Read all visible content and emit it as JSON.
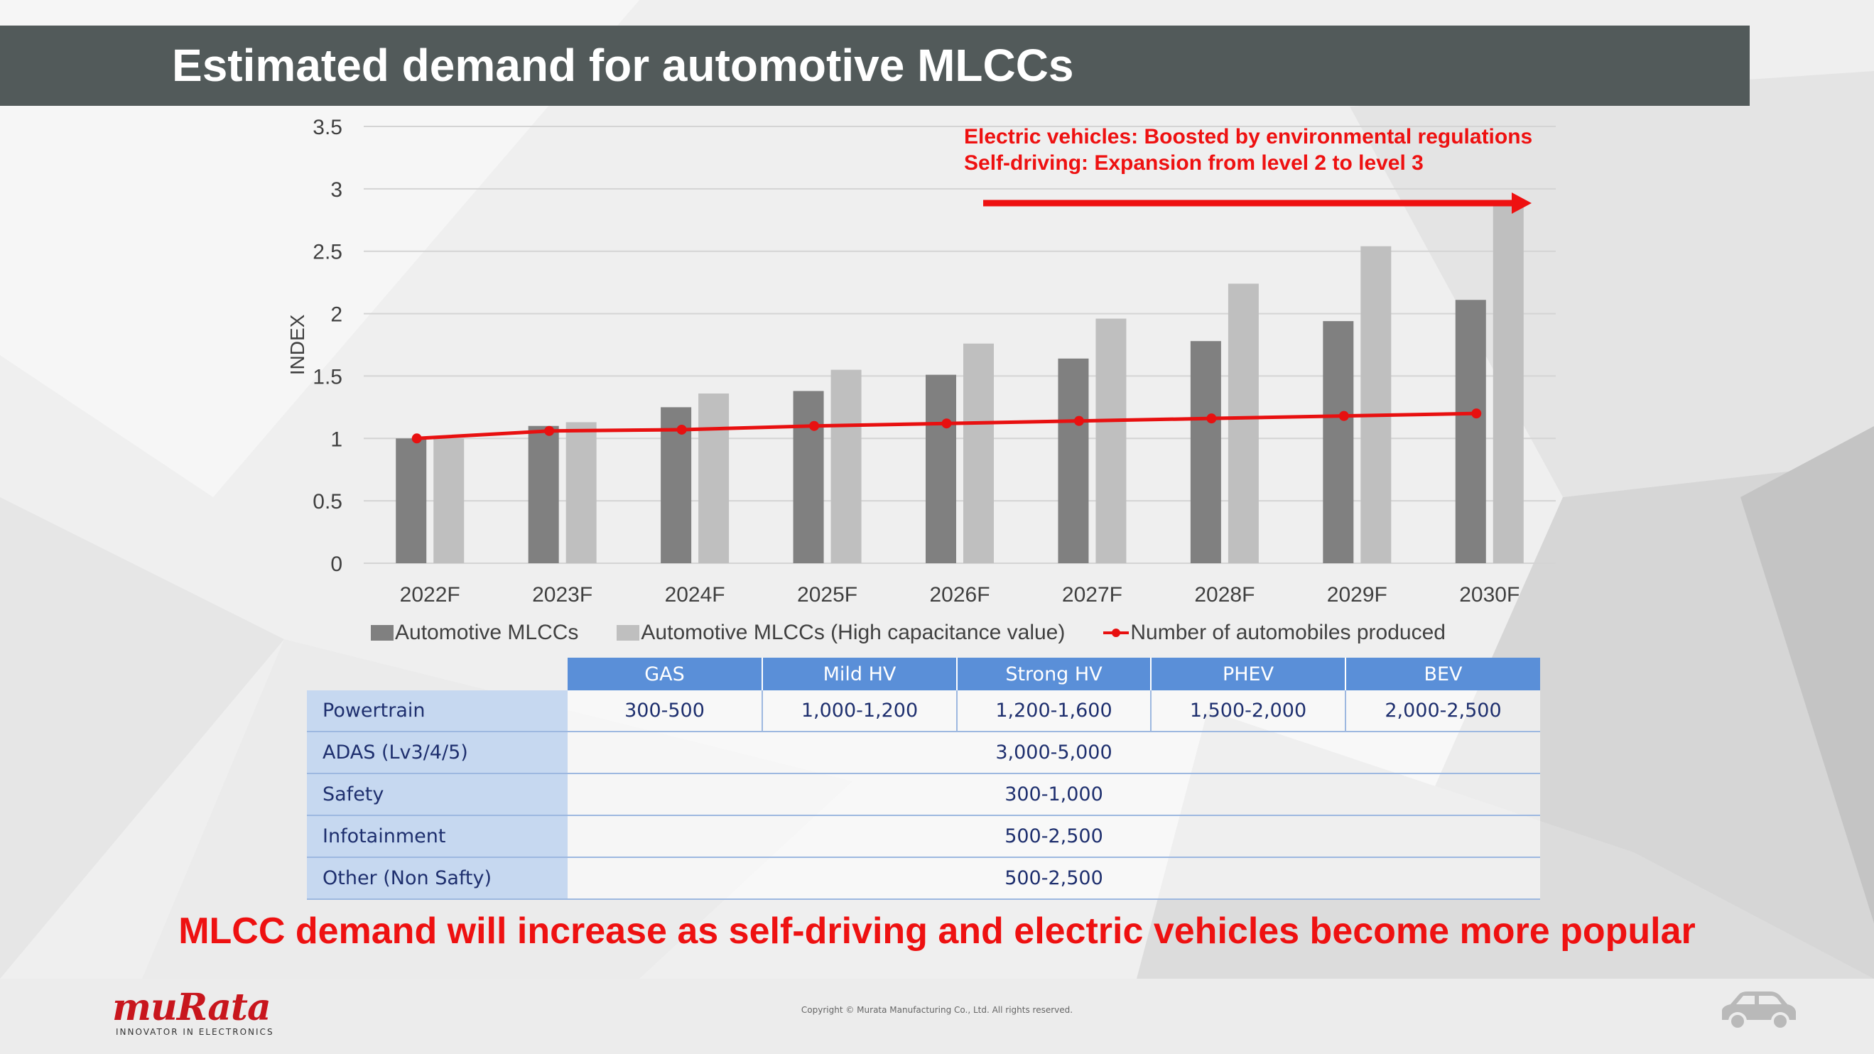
{
  "slide": {
    "title": "Estimated demand for automotive MLCCs",
    "conclusion": "MLCC demand will increase as self-driving and electric vehicles become more popular",
    "copyright": "Copyright © Murata Manufacturing Co., Ltd. All rights reserved."
  },
  "brand": {
    "logo_text": "muRata",
    "tagline": "INNOVATOR IN ELECTRONICS",
    "logo_color": "#c8161d"
  },
  "annotations": {
    "line1": "Electric vehicles: Boosted by environmental regulations",
    "line2": "Self-driving: Expansion from level 2 to level 3",
    "color": "#ee1111"
  },
  "chart_data": {
    "type": "bar",
    "title": "",
    "xlabel": "",
    "ylabel": "INDEX",
    "ylim": [
      0,
      3.5
    ],
    "yticks": [
      "0",
      "0.5",
      "1",
      "1.5",
      "2",
      "2.5",
      "3",
      "3.5"
    ],
    "grid": true,
    "legend_position": "bottom",
    "categories": [
      "2022F",
      "2023F",
      "2024F",
      "2025F",
      "2026F",
      "2027F",
      "2028F",
      "2029F",
      "2030F"
    ],
    "series": [
      {
        "name": "Automotive MLCCs",
        "kind": "bar",
        "color": "#808080",
        "values": [
          1.0,
          1.1,
          1.25,
          1.38,
          1.51,
          1.64,
          1.78,
          1.94,
          2.11
        ]
      },
      {
        "name": "Automotive MLCCs (High capacitance value)",
        "kind": "bar",
        "color": "#bfbfbf",
        "values": [
          1.0,
          1.13,
          1.36,
          1.55,
          1.76,
          1.96,
          2.24,
          2.54,
          2.88
        ]
      },
      {
        "name": "Number of automobiles produced",
        "kind": "line",
        "color": "#e81010",
        "values": [
          1.0,
          1.06,
          1.07,
          1.1,
          1.12,
          1.14,
          1.16,
          1.18,
          1.2
        ]
      }
    ]
  },
  "table": {
    "headers": [
      "GAS",
      "Mild HV",
      "Strong HV",
      "PHEV",
      "BEV"
    ],
    "rows": [
      {
        "label": "Powertrain",
        "values": [
          "300-500",
          "1,000-1,200",
          "1,200-1,600",
          "1,500-2,000",
          "2,000-2,500"
        ]
      },
      {
        "label": "ADAS (Lv3/4/5)",
        "value": "3,000-5,000"
      },
      {
        "label": "Safety",
        "value": "300-1,000"
      },
      {
        "label": "Infotainment",
        "value": "500-2,500"
      },
      {
        "label": "Other (Non Safty)",
        "value": "500-2,500"
      }
    ]
  }
}
